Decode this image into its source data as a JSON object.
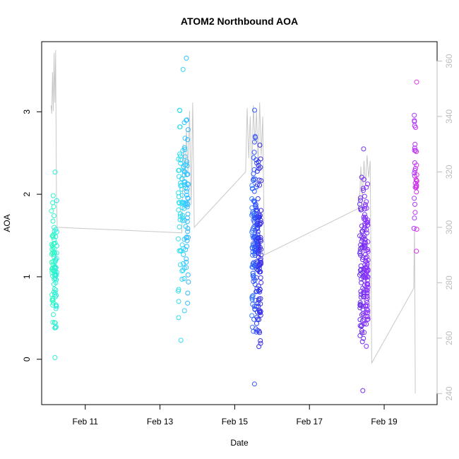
{
  "chart_data": {
    "type": "scatter",
    "title": "ATOM2 Northbound AOA",
    "xlabel": "Date",
    "ylabel": "AOA",
    "xlim": [
      "2021-02-09T20:00",
      "2021-02-20T10:00"
    ],
    "ylim": [
      -0.55,
      3.85
    ],
    "y2lim": [
      236,
      367
    ],
    "x_ticks": [
      {
        "label": "Feb 11",
        "date": "2021-02-11T00:00"
      },
      {
        "label": "Feb 13",
        "date": "2021-02-13T00:00"
      },
      {
        "label": "Feb 15",
        "date": "2021-02-15T00:00"
      },
      {
        "label": "Feb 17",
        "date": "2021-02-17T00:00"
      },
      {
        "label": "Feb 19",
        "date": "2021-02-19T00:00"
      }
    ],
    "y_ticks": [
      "0",
      "1",
      "2",
      "3"
    ],
    "y2_ticks": [
      "240",
      "260",
      "280",
      "300",
      "320",
      "340",
      "360"
    ],
    "grid": false,
    "colors": {
      "axis": "#000000",
      "secondary_axis": "#bdbdbd",
      "line": "#c8c8c8",
      "point_palette": [
        "#33ffb8",
        "#2ee8e0",
        "#33d6ff",
        "#33b0ff",
        "#335cff",
        "#2e2ee8",
        "#6a2ee8",
        "#8a33ff",
        "#b033ff",
        "#e02ee0"
      ]
    },
    "point_groups": [
      {
        "center": "2021-02-10T04:00",
        "spread_hours": 3.5,
        "n": 95,
        "ymin": 0.02,
        "ymax": 2.27,
        "color_start": 0.0,
        "color_end": 0.12
      },
      {
        "center": "2021-02-13T15:00",
        "spread_hours": 6.5,
        "n": 120,
        "ymin": 0.23,
        "ymax": 3.65,
        "color_start": 0.15,
        "color_end": 0.32
      },
      {
        "center": "2021-02-15T14:00",
        "spread_hours": 6.0,
        "n": 220,
        "ymin": -0.3,
        "ymax": 3.02,
        "color_start": 0.4,
        "color_end": 0.6
      },
      {
        "center": "2021-02-18T11:00",
        "spread_hours": 5.5,
        "n": 170,
        "ymin": -0.38,
        "ymax": 2.55,
        "color_start": 0.65,
        "color_end": 0.8
      },
      {
        "center": "2021-02-19T20:00",
        "spread_hours": 2.0,
        "n": 35,
        "ymin": 1.31,
        "ymax": 3.36,
        "color_start": 0.85,
        "color_end": 1.0
      }
    ],
    "secondary_series": {
      "name": "",
      "color": "#c8c8c8",
      "points": [
        {
          "x": "2021-02-10T02:00",
          "y": 344
        },
        {
          "x": "2021-02-10T02:30",
          "y": 341
        },
        {
          "x": "2021-02-10T03:00",
          "y": 356
        },
        {
          "x": "2021-02-10T03:30",
          "y": 342
        },
        {
          "x": "2021-02-10T04:00",
          "y": 363
        },
        {
          "x": "2021-02-10T04:30",
          "y": 345
        },
        {
          "x": "2021-02-10T05:00",
          "y": 364
        },
        {
          "x": "2021-02-10T05:30",
          "y": 312
        },
        {
          "x": "2021-02-10T06:00",
          "y": 300
        },
        {
          "x": "2021-02-13T14:00",
          "y": 298
        },
        {
          "x": "2021-02-13T15:00",
          "y": 330
        },
        {
          "x": "2021-02-13T16:00",
          "y": 318
        },
        {
          "x": "2021-02-13T17:00",
          "y": 335
        },
        {
          "x": "2021-02-13T18:00",
          "y": 320
        },
        {
          "x": "2021-02-13T19:00",
          "y": 342
        },
        {
          "x": "2021-02-13T20:00",
          "y": 308
        },
        {
          "x": "2021-02-13T21:00",
          "y": 345
        },
        {
          "x": "2021-02-13T22:00",
          "y": 300
        },
        {
          "x": "2021-02-15T07:00",
          "y": 320
        },
        {
          "x": "2021-02-15T08:00",
          "y": 343
        },
        {
          "x": "2021-02-15T09:00",
          "y": 325
        },
        {
          "x": "2021-02-15T10:00",
          "y": 340
        },
        {
          "x": "2021-02-15T11:00",
          "y": 318
        },
        {
          "x": "2021-02-15T12:00",
          "y": 344
        },
        {
          "x": "2021-02-15T13:00",
          "y": 330
        },
        {
          "x": "2021-02-15T14:00",
          "y": 342
        },
        {
          "x": "2021-02-15T15:00",
          "y": 322
        },
        {
          "x": "2021-02-15T16:00",
          "y": 345
        },
        {
          "x": "2021-02-15T17:00",
          "y": 326
        },
        {
          "x": "2021-02-15T18:00",
          "y": 340
        },
        {
          "x": "2021-02-15T19:00",
          "y": 290
        },
        {
          "x": "2021-02-18T08:00",
          "y": 307
        },
        {
          "x": "2021-02-18T09:00",
          "y": 322
        },
        {
          "x": "2021-02-18T10:00",
          "y": 310
        },
        {
          "x": "2021-02-18T11:00",
          "y": 324
        },
        {
          "x": "2021-02-18T12:00",
          "y": 315
        },
        {
          "x": "2021-02-18T13:00",
          "y": 326
        },
        {
          "x": "2021-02-18T14:00",
          "y": 318
        },
        {
          "x": "2021-02-18T15:00",
          "y": 324
        },
        {
          "x": "2021-02-18T16:00",
          "y": 251
        },
        {
          "x": "2021-02-19T19:00",
          "y": 278
        },
        {
          "x": "2021-02-19T19:30",
          "y": 300
        },
        {
          "x": "2021-02-19T20:00",
          "y": 240
        }
      ]
    }
  }
}
